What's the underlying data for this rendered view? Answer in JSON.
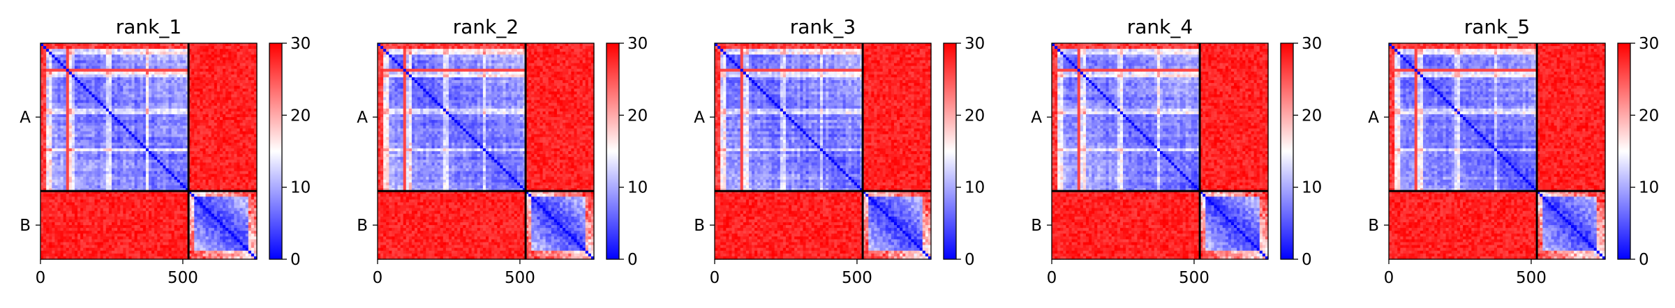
{
  "figure": {
    "background": "#ffffff"
  },
  "chart_data": [
    {
      "type": "heatmap",
      "title": "rank_1",
      "chains": [
        {
          "label": "A",
          "start": 0,
          "end": 520
        },
        {
          "label": "B",
          "start": 520,
          "end": 760
        }
      ],
      "x_ticks": [
        0,
        500
      ],
      "xlim": [
        0,
        760
      ],
      "colorbar": {
        "min": 0,
        "max": 30,
        "ticks": [
          0,
          10,
          20,
          30
        ],
        "colors": [
          "#0000ff",
          "#ffffff",
          "#ff0000"
        ]
      },
      "variant_seed": 11
    },
    {
      "type": "heatmap",
      "title": "rank_2",
      "chains": [
        {
          "label": "A",
          "start": 0,
          "end": 520
        },
        {
          "label": "B",
          "start": 520,
          "end": 760
        }
      ],
      "x_ticks": [
        0,
        500
      ],
      "xlim": [
        0,
        760
      ],
      "colorbar": {
        "min": 0,
        "max": 30,
        "ticks": [
          0,
          10,
          20,
          30
        ],
        "colors": [
          "#0000ff",
          "#ffffff",
          "#ff0000"
        ]
      },
      "variant_seed": 23
    },
    {
      "type": "heatmap",
      "title": "rank_3",
      "chains": [
        {
          "label": "A",
          "start": 0,
          "end": 520
        },
        {
          "label": "B",
          "start": 520,
          "end": 760
        }
      ],
      "x_ticks": [
        0,
        500
      ],
      "xlim": [
        0,
        760
      ],
      "colorbar": {
        "min": 0,
        "max": 30,
        "ticks": [
          0,
          10,
          20,
          30
        ],
        "colors": [
          "#0000ff",
          "#ffffff",
          "#ff0000"
        ]
      },
      "variant_seed": 37
    },
    {
      "type": "heatmap",
      "title": "rank_4",
      "chains": [
        {
          "label": "A",
          "start": 0,
          "end": 520
        },
        {
          "label": "B",
          "start": 520,
          "end": 760
        }
      ],
      "x_ticks": [
        0,
        500
      ],
      "xlim": [
        0,
        760
      ],
      "colorbar": {
        "min": 0,
        "max": 30,
        "ticks": [
          0,
          10,
          20,
          30
        ],
        "colors": [
          "#0000ff",
          "#ffffff",
          "#ff0000"
        ]
      },
      "variant_seed": 41
    },
    {
      "type": "heatmap",
      "title": "rank_5",
      "chains": [
        {
          "label": "A",
          "start": 0,
          "end": 520
        },
        {
          "label": "B",
          "start": 520,
          "end": 760
        }
      ],
      "x_ticks": [
        0,
        500
      ],
      "xlim": [
        0,
        760
      ],
      "colorbar": {
        "min": 0,
        "max": 30,
        "ticks": [
          0,
          10,
          20,
          30
        ],
        "colors": [
          "#0000ff",
          "#ffffff",
          "#ff0000"
        ]
      },
      "variant_seed": 53
    }
  ]
}
